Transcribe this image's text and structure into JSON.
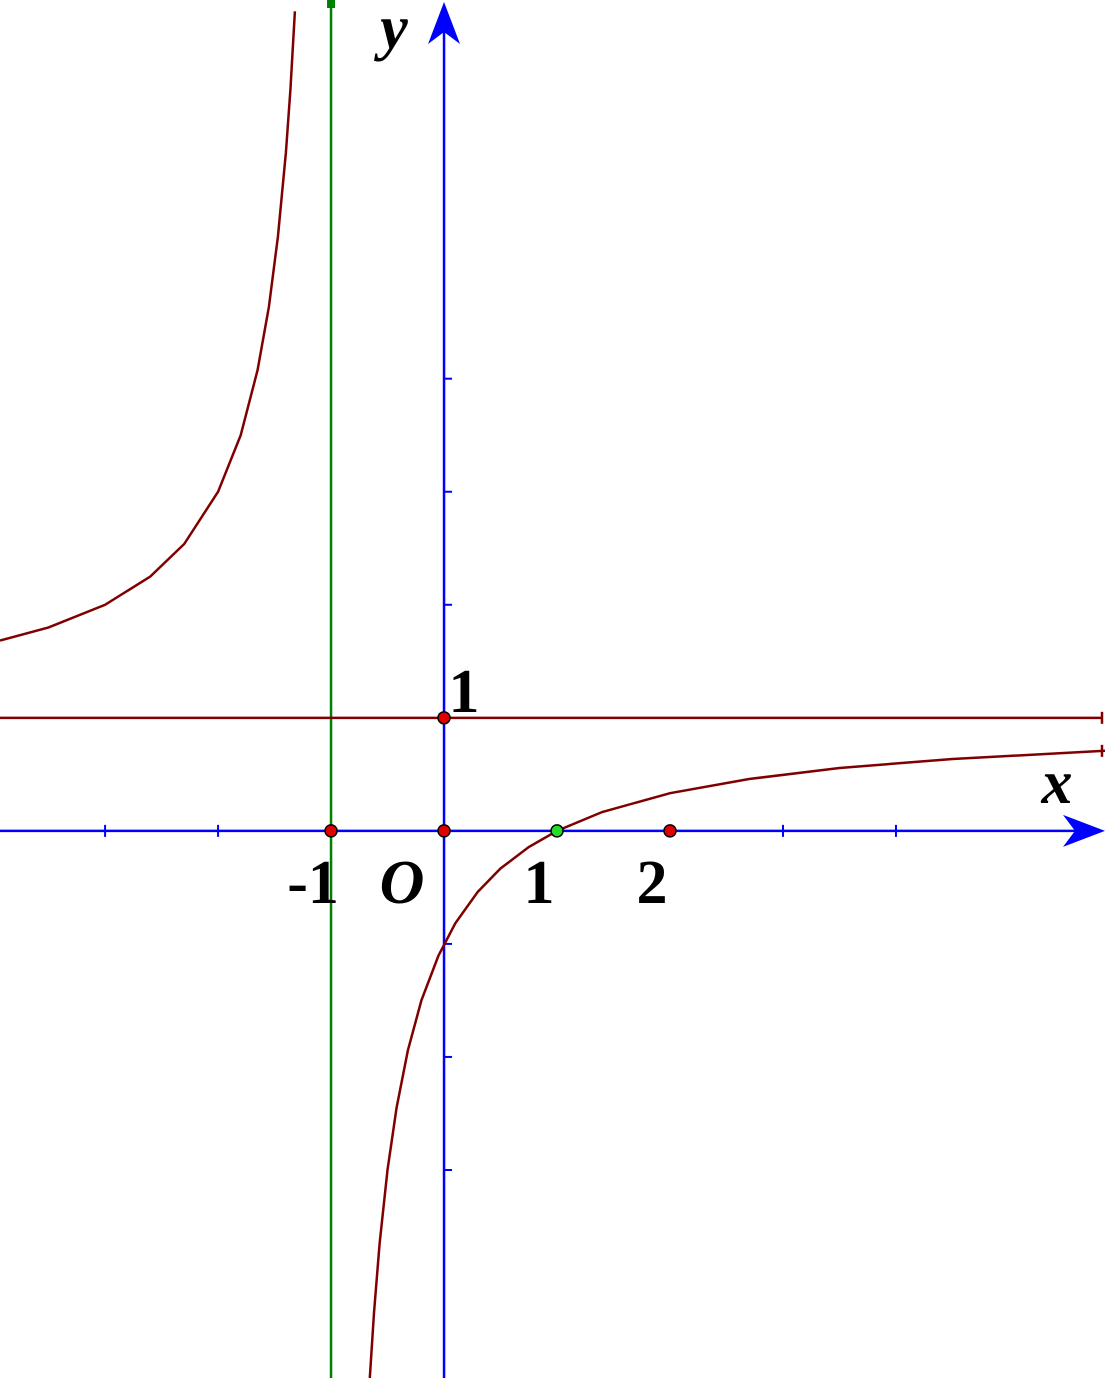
{
  "chart_data": {
    "type": "line",
    "x_label": "x",
    "y_label": "y",
    "origin_label": "O",
    "xlim": [
      -3.93,
      5.85
    ],
    "ylim": [
      -4.84,
      7.35
    ],
    "xticks": [
      -1,
      1,
      2
    ],
    "yticks": [
      1
    ],
    "x_minor_ticks": [
      -3,
      -2,
      -1,
      0,
      1,
      2,
      3,
      4
    ],
    "y_minor_ticks": [
      -3,
      -2,
      -1,
      1,
      2,
      3,
      4
    ],
    "axis_color": "#0000ff",
    "x": [
      -3.93,
      -3.5,
      -3,
      -2.6,
      -2.3,
      -2,
      -1.8,
      -1.65,
      -1.55,
      -1.47,
      -1.4,
      -1.36,
      -1.32,
      -1,
      -0.66,
      -0.62,
      -0.57,
      -0.5,
      -0.42,
      -0.32,
      -0.2,
      -0.05,
      0.1,
      0.3,
      0.5,
      0.75,
      1,
      1.4,
      2,
      2.7,
      3.5,
      4.5,
      5.85
    ],
    "series": [
      {
        "color": "#800000",
        "values": [
          1.683,
          1.8,
          2,
          2.25,
          2.538,
          3,
          3.5,
          4.077,
          4.636,
          5.255,
          6,
          6.556,
          7.25,
          null,
          -4.882,
          -4.263,
          -3.651,
          -3,
          -2.448,
          -1.941,
          -1.5,
          -1.105,
          -0.818,
          -0.538,
          -0.333,
          -0.143,
          0,
          0.167,
          0.333,
          0.459,
          0.556,
          0.636,
          0.708
        ]
      }
    ],
    "hlines": [
      {
        "y": 1,
        "color": "#800000"
      }
    ],
    "vlines": [
      {
        "x": -1,
        "color": "#008000"
      }
    ],
    "points": [
      {
        "x": -1,
        "y": 0,
        "color": "#e00000"
      },
      {
        "x": 0,
        "y": 0,
        "color": "#e00000"
      },
      {
        "x": 2,
        "y": 0,
        "color": "#e00000"
      },
      {
        "x": 0,
        "y": 1,
        "color": "#e00000"
      },
      {
        "x": 1,
        "y": 0,
        "color": "#22dd22"
      }
    ]
  }
}
